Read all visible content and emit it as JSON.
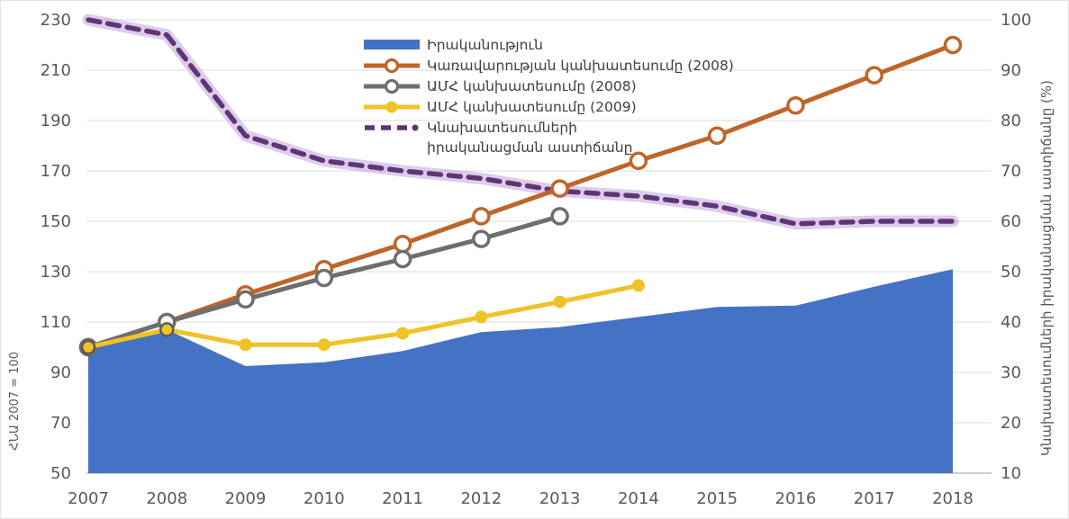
{
  "chart_data": {
    "type": "area+line combo, dual y-axis",
    "x": [
      2007,
      2008,
      2009,
      2010,
      2011,
      2012,
      2013,
      2014,
      2015,
      2016,
      2017,
      2018
    ],
    "ylabel_left": "ՀՆԱ 2007 = 100",
    "ylabel_right": "Կնախատեսումների իրականացման աստիճանը (%)",
    "y_left_ticks": [
      230,
      210,
      190,
      170,
      150,
      130,
      110,
      90,
      70,
      50
    ],
    "y_right_ticks": [
      100,
      90,
      80,
      70,
      60,
      50,
      40,
      30,
      20,
      10
    ],
    "ylim_left": [
      50,
      230
    ],
    "ylim_right": [
      10,
      100
    ],
    "grid": true,
    "legend_position": "top-center",
    "background": "#ffffff",
    "gridline_color": "#dcdcdc",
    "axis_line_color": "#bfbfbf",
    "tick_text_color": "#595959",
    "series": [
      {
        "name": "Իրականություն",
        "type": "area",
        "axis": "left",
        "color": "#4472C4",
        "values": [
          100,
          107,
          92.5,
          94,
          98.5,
          106,
          108,
          112,
          116,
          116.5,
          124,
          131
        ]
      },
      {
        "name": "Կառավարության կանխատեսումը (2008)",
        "type": "line",
        "marker": "open-circle",
        "axis": "left",
        "color": "#BE6529",
        "values": [
          100,
          110,
          121,
          131,
          141,
          152,
          163,
          174,
          184,
          196,
          208,
          220
        ]
      },
      {
        "name": "ԱՄՀ կանխատեսումը (2008)",
        "type": "line",
        "marker": "open-circle",
        "axis": "left",
        "color": "#6E6E6E",
        "values": [
          100,
          110,
          119,
          127.5,
          135,
          143,
          152,
          null,
          null,
          null,
          null,
          null
        ]
      },
      {
        "name": "ԱՄՀ կանխատեսումը (2009)",
        "type": "line",
        "marker": "dot",
        "axis": "left",
        "color": "#EFC228",
        "values": [
          100,
          107,
          101,
          101,
          105.5,
          112,
          118,
          124.5,
          null,
          null,
          null,
          null
        ]
      },
      {
        "name": "Կնախատեսումների իրականացման աստիճանը",
        "type": "dashed-line",
        "axis": "right",
        "color": "#5F3577",
        "glow": "rgba(171,130,202,0.4)",
        "legend_wrap": true,
        "values": [
          100,
          97,
          77,
          72,
          70,
          68.5,
          66,
          65,
          63,
          59.5,
          60,
          60
        ]
      }
    ]
  }
}
